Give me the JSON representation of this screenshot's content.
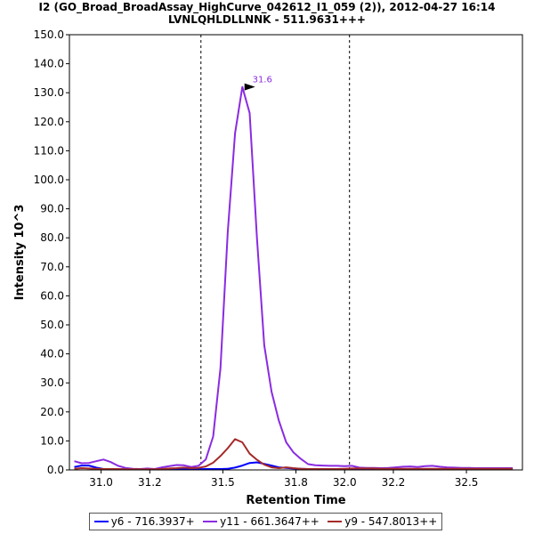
{
  "title_line1": "I2 (GO_Broad_BroadAssay_HighCurve_042612_I1_059 (2)), 2012-04-27 16:14",
  "title_line2": "LVNLQHLDLLNNK - 511.9631+++",
  "chart_data": {
    "type": "line",
    "xlabel": "Retention Time",
    "ylabel": "Intensity 10^3",
    "xlim": [
      30.87,
      32.73
    ],
    "ylim": [
      0,
      150
    ],
    "x_ticks": [
      "31.0",
      "31.2",
      "31.5",
      "31.8",
      "32.0",
      "32.2",
      "32.5"
    ],
    "x_tick_values": [
      31.0,
      31.2,
      31.5,
      31.8,
      32.0,
      32.2,
      32.5
    ],
    "y_ticks": [
      "0.0",
      "10.0",
      "20.0",
      "30.0",
      "40.0",
      "50.0",
      "60.0",
      "70.0",
      "80.0",
      "90.0",
      "100.0",
      "110.0",
      "120.0",
      "130.0",
      "140.0",
      "150.0"
    ],
    "y_tick_values": [
      0,
      10,
      20,
      30,
      40,
      50,
      60,
      70,
      80,
      90,
      100,
      110,
      120,
      130,
      140,
      150
    ],
    "boundaries": [
      31.41,
      32.02
    ],
    "peak_annotation": {
      "label": "31.6",
      "x": 31.64,
      "y": 132
    },
    "x": [
      30.89,
      30.92,
      30.95,
      30.98,
      31.01,
      31.04,
      31.07,
      31.1,
      31.13,
      31.16,
      31.19,
      31.22,
      31.25,
      31.28,
      31.31,
      31.34,
      31.37,
      31.4,
      31.43,
      31.46,
      31.49,
      31.52,
      31.55,
      31.58,
      31.61,
      31.64,
      31.67,
      31.7,
      31.73,
      31.76,
      31.79,
      31.82,
      31.85,
      31.88,
      31.91,
      31.94,
      31.97,
      32.0,
      32.03,
      32.06,
      32.09,
      32.12,
      32.15,
      32.18,
      32.21,
      32.24,
      32.27,
      32.3,
      32.33,
      32.36,
      32.39,
      32.42,
      32.45,
      32.48,
      32.51,
      32.54,
      32.57,
      32.6,
      32.63,
      32.66,
      32.69
    ],
    "series": [
      {
        "name": "y6 - 716.3937+",
        "color": "#0000ff",
        "values": [
          1.0,
          1.5,
          1.5,
          0.8,
          0.3,
          0.2,
          0.2,
          0.2,
          0.2,
          0.2,
          0.2,
          0.2,
          0.3,
          0.4,
          0.3,
          0.2,
          0.2,
          0.2,
          0.3,
          0.3,
          0.3,
          0.4,
          0.8,
          1.5,
          2.4,
          2.6,
          2.1,
          1.5,
          0.9,
          0.7,
          0.5,
          0.4,
          0.3,
          0.3,
          0.3,
          0.2,
          0.2,
          0.2,
          0.3,
          0.3,
          0.3,
          0.3,
          0.3,
          0.3,
          0.3,
          0.3,
          0.3,
          0.3,
          0.3,
          0.3,
          0.3,
          0.3,
          0.3,
          0.3,
          0.3,
          0.3,
          0.3,
          0.3,
          0.3,
          0.3,
          0.3
        ]
      },
      {
        "name": "y11 - 661.3647++",
        "color": "#8a2be2",
        "values": [
          3.0,
          2.3,
          2.4,
          3.0,
          3.6,
          2.7,
          1.4,
          0.7,
          0.4,
          0.3,
          0.5,
          0.3,
          0.9,
          1.3,
          1.7,
          1.6,
          1.0,
          1.4,
          3.6,
          11.5,
          35.0,
          82.0,
          116.0,
          132.0,
          123.0,
          80.0,
          43.0,
          27.0,
          17.0,
          9.5,
          6.0,
          3.8,
          2.0,
          1.6,
          1.5,
          1.4,
          1.4,
          1.3,
          1.4,
          0.8,
          0.7,
          0.7,
          0.6,
          0.7,
          0.9,
          1.1,
          1.2,
          1.0,
          1.3,
          1.4,
          1.1,
          0.9,
          0.8,
          0.7,
          0.7,
          0.6,
          0.6,
          0.6,
          0.6,
          0.6,
          0.6
        ]
      },
      {
        "name": "y9 - 547.8013++",
        "color": "#a52a2a",
        "values": [
          0.4,
          0.6,
          0.5,
          0.4,
          0.3,
          0.3,
          0.3,
          0.2,
          0.2,
          0.2,
          0.2,
          0.2,
          0.3,
          0.5,
          0.6,
          0.8,
          0.6,
          0.7,
          1.2,
          2.5,
          4.8,
          7.5,
          10.6,
          9.5,
          5.6,
          3.5,
          1.8,
          0.9,
          0.6,
          0.9,
          0.6,
          0.4,
          0.3,
          0.3,
          0.3,
          0.3,
          0.3,
          0.4,
          0.5,
          0.5,
          0.5,
          0.5,
          0.4,
          0.4,
          0.4,
          0.4,
          0.4,
          0.4,
          0.4,
          0.4,
          0.4,
          0.4,
          0.4,
          0.4,
          0.4,
          0.4,
          0.4,
          0.4,
          0.4,
          0.4,
          0.4
        ]
      }
    ]
  }
}
